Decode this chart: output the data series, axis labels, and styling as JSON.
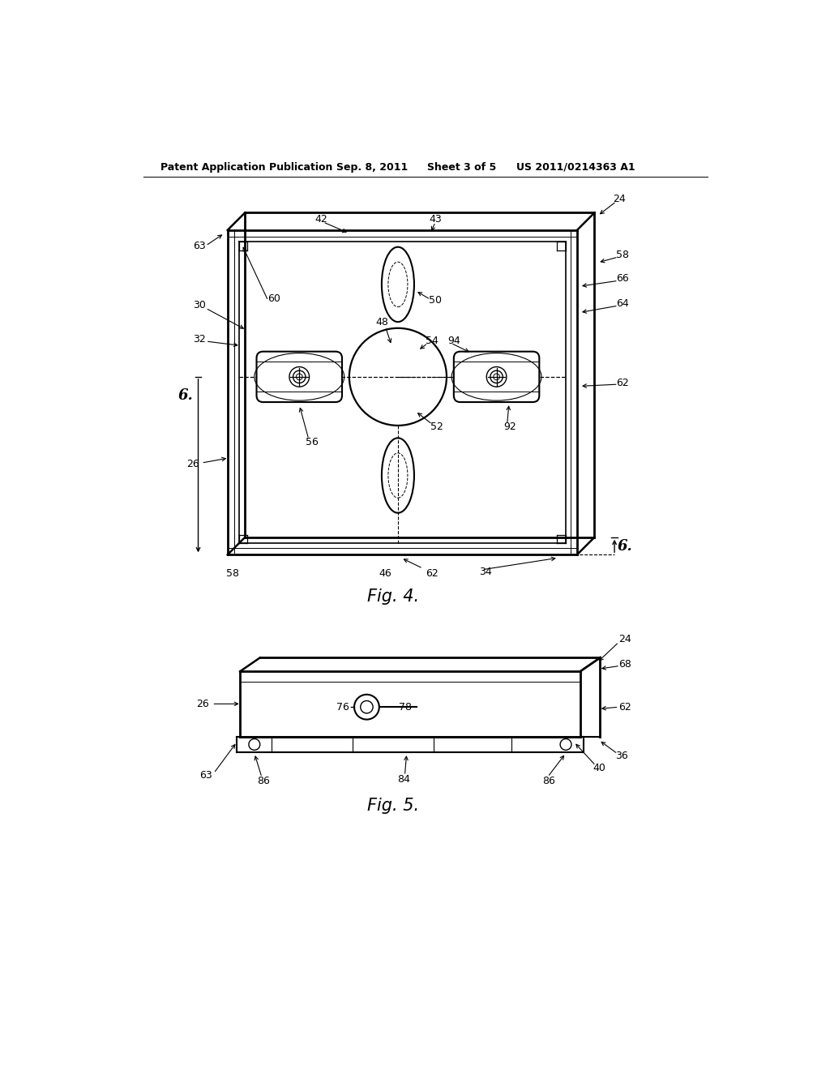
{
  "bg_color": "#ffffff",
  "line_color": "#000000",
  "header_text": "Patent Application Publication",
  "header_date": "Sep. 8, 2011",
  "header_sheet": "Sheet 3 of 5",
  "header_patent": "US 2011/0214363 A1",
  "fig4_label": "Fig. 4.",
  "fig5_label": "Fig. 5."
}
